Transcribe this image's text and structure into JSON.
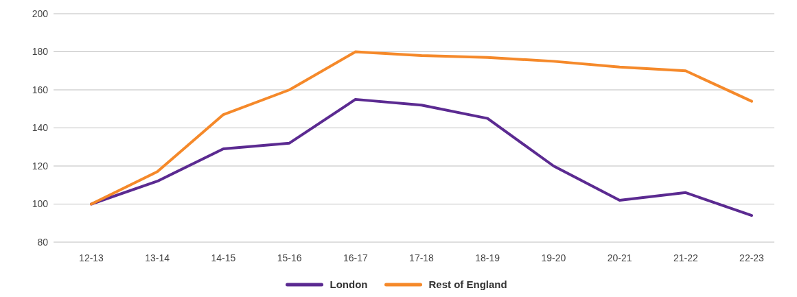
{
  "chart_data": {
    "type": "line",
    "categories": [
      "12-13",
      "13-14",
      "14-15",
      "15-16",
      "16-17",
      "17-18",
      "18-19",
      "19-20",
      "20-21",
      "21-22",
      "22-23"
    ],
    "series": [
      {
        "name": "London",
        "color": "#5b2a91",
        "values": [
          100,
          112,
          129,
          132,
          155,
          152,
          145,
          120,
          102,
          106,
          94
        ]
      },
      {
        "name": "Rest of England",
        "color": "#f5892a",
        "values": [
          100,
          117,
          147,
          160,
          180,
          178,
          177,
          175,
          172,
          170,
          154
        ]
      }
    ],
    "ylim": [
      80,
      200
    ],
    "yticks": [
      80,
      100,
      120,
      140,
      160,
      180,
      200
    ],
    "grid": "y",
    "legend": "bottom",
    "marker": "none",
    "line_style": "solid"
  }
}
